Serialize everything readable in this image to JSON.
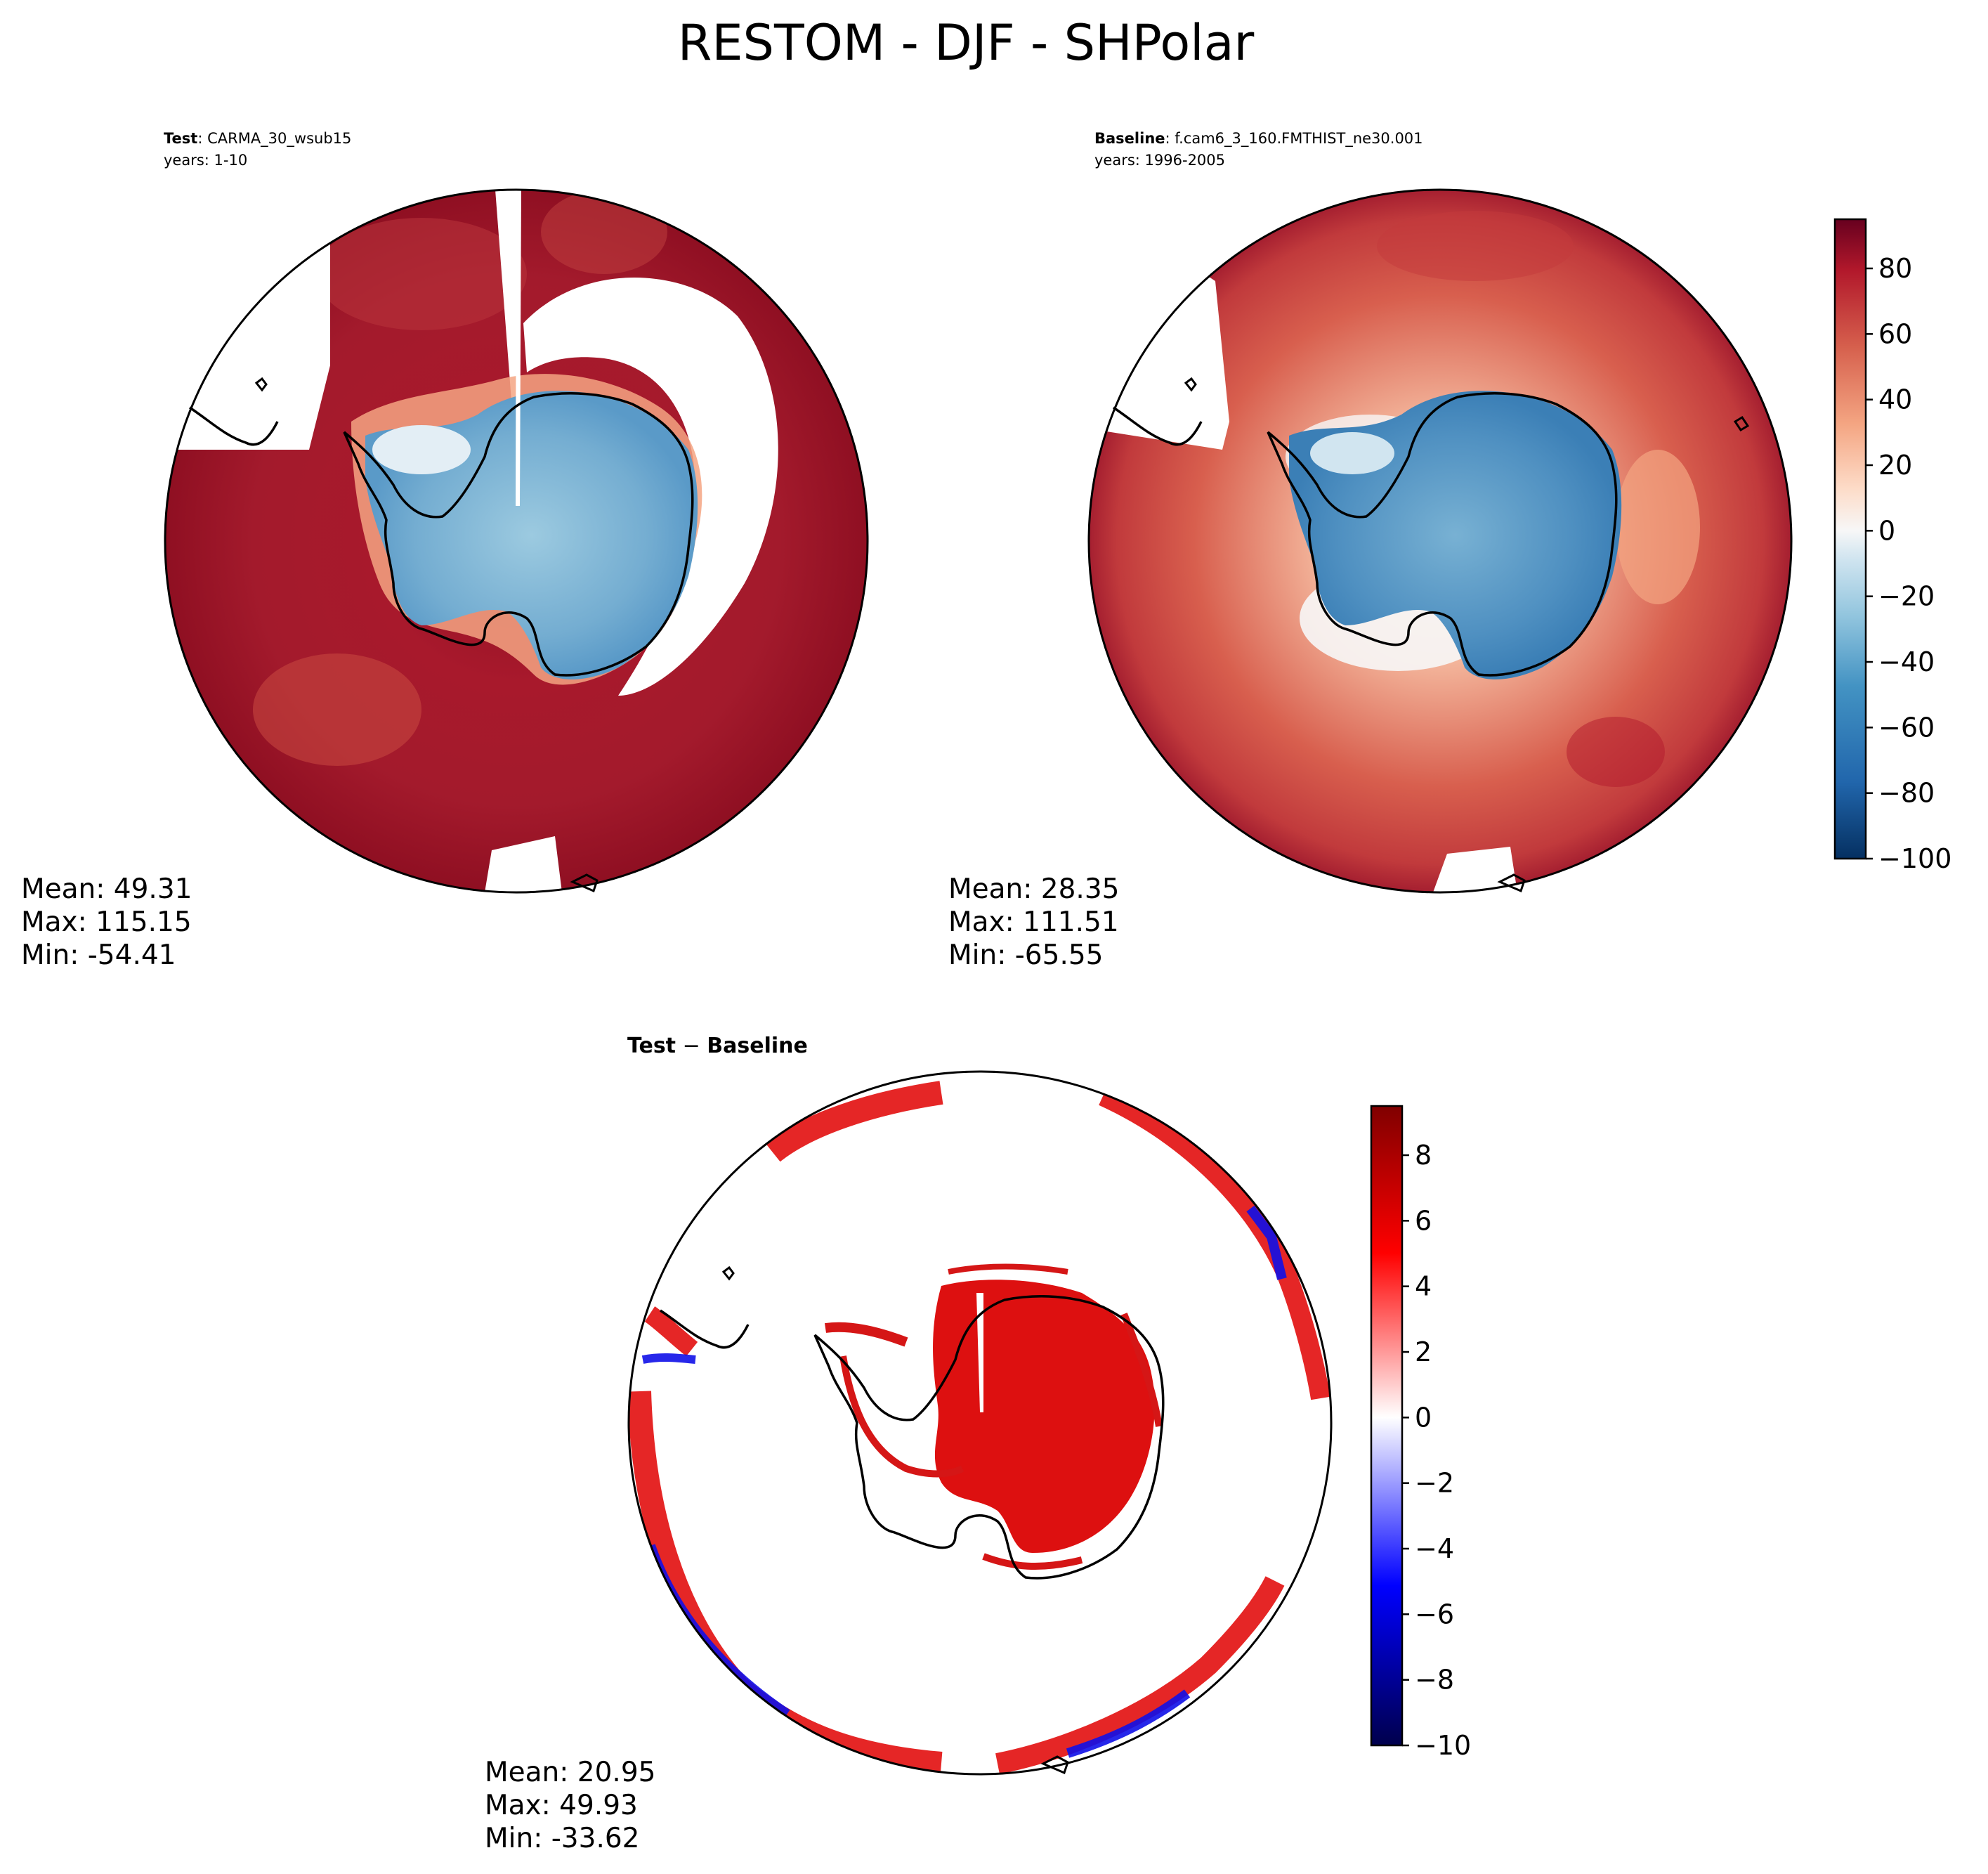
{
  "chart_data": {
    "title": "RESTOM - DJF - SHPolar",
    "type": "heatmap",
    "projection": "south polar stereographic",
    "panels": [
      {
        "id": "test",
        "label_bold": "Test",
        "label_rest": ": CARMA_30_wsub15",
        "years": "years: 1-10",
        "mean": "Mean: 49.31",
        "max": "Max: 115.15",
        "min": "Min: -54.41",
        "colormap": "RdBu_r",
        "ocean_level": 80,
        "antarctica_level": -45,
        "shared_colorbar": "main"
      },
      {
        "id": "baseline",
        "label_bold": "Baseline",
        "label_rest": ": f.cam6_3_160.FMTHIST_ne30.001",
        "years": "years: 1996-2005",
        "mean": "Mean: 28.35",
        "max": "Max: 111.51",
        "min": "Min: -65.55",
        "colormap": "RdBu_r",
        "ocean_level": 50,
        "antarctica_level": -55,
        "shared_colorbar": "main"
      },
      {
        "id": "diff",
        "label_bold": "Test",
        "label_sep": " − ",
        "label_bold2": "Baseline",
        "mean": "Mean: 20.95",
        "max": "Max: 49.93",
        "min": "Min: -33.62",
        "colormap": "seismic",
        "antarctica_level": 7,
        "shared_colorbar": "diff"
      }
    ],
    "colorbars": {
      "main": {
        "range": [
          -100,
          95
        ],
        "ticks": [
          80,
          60,
          40,
          20,
          0,
          -20,
          -40,
          -60,
          -80,
          -100
        ],
        "tick_labels": [
          "80",
          "60",
          "40",
          "20",
          "0",
          "−20",
          "−40",
          "−60",
          "−80",
          "−100"
        ]
      },
      "diff": {
        "range": [
          -10,
          9.5
        ],
        "ticks": [
          8,
          6,
          4,
          2,
          0,
          -2,
          -4,
          -6,
          -8,
          -10
        ],
        "tick_labels": [
          "8",
          "6",
          "4",
          "2",
          "0",
          "−2",
          "−4",
          "−6",
          "−8",
          "−10"
        ]
      }
    }
  }
}
